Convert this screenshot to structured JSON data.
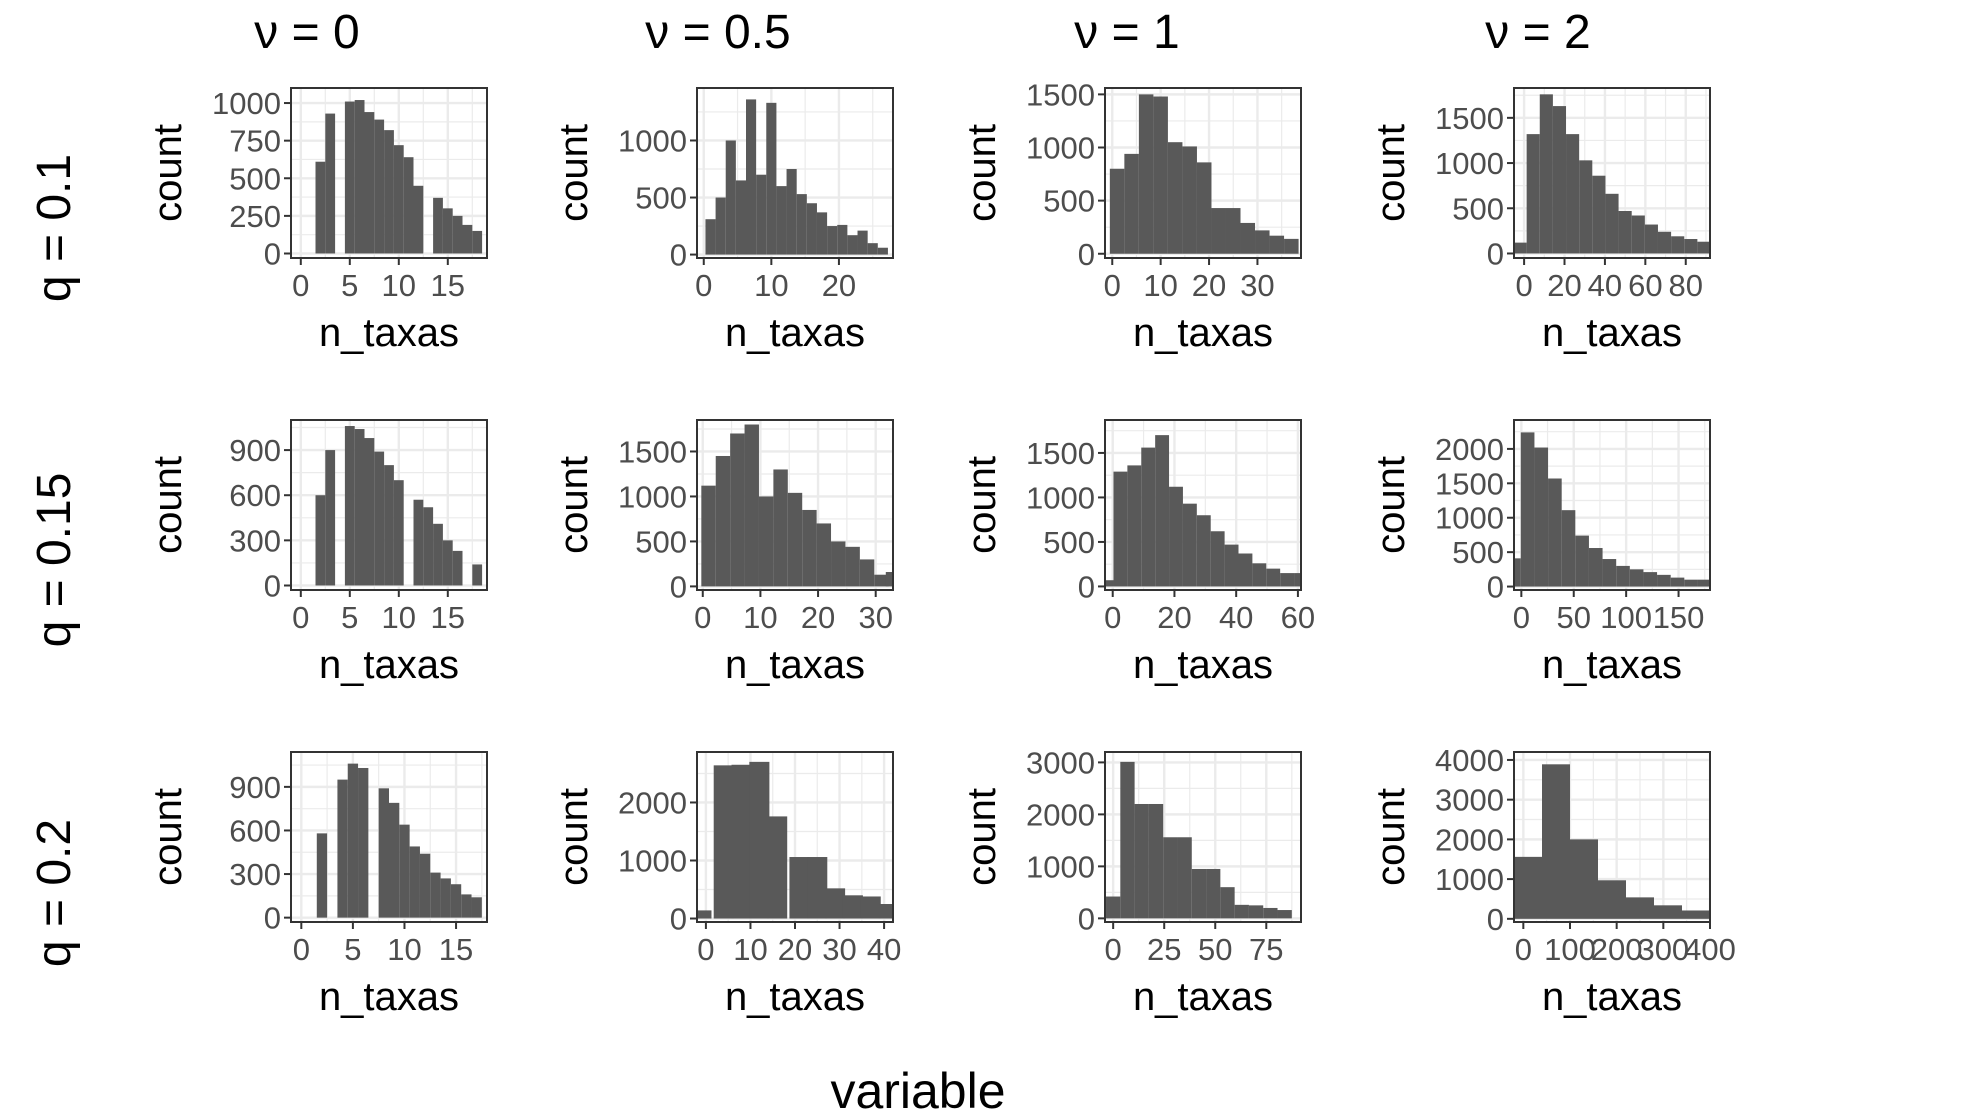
{
  "colors": {
    "bar": "#595959",
    "grid": "#ebebeb",
    "frame": "#333333",
    "tick_text": "#4d4d4d",
    "background": "#ffffff"
  },
  "x_axis_title": "variable",
  "col_headers": [
    "ν = 0",
    "ν = 0.5",
    "ν = 1",
    "ν = 2"
  ],
  "row_headers": [
    "q =  0.1",
    "q =  0.15",
    "q =  0.2"
  ],
  "chart_data": [
    {
      "type": "bar",
      "row": 0,
      "col": 0,
      "xlabel": "n_taxas",
      "ylabel": "count",
      "xlim": [
        -1,
        19
      ],
      "ylim": [
        -30,
        1100
      ],
      "xticks": [
        0,
        5,
        10,
        15
      ],
      "yticks": [
        0,
        250,
        500,
        750,
        1000
      ],
      "bin_width": 1,
      "x": [
        2,
        3,
        4,
        5,
        6,
        7,
        8,
        9,
        10,
        11,
        12,
        13,
        14,
        15,
        16,
        17,
        18
      ],
      "values": [
        610,
        930,
        0,
        1010,
        1020,
        940,
        890,
        820,
        720,
        640,
        450,
        0,
        370,
        300,
        250,
        190,
        150
      ]
    },
    {
      "type": "bar",
      "row": 0,
      "col": 1,
      "xlabel": "n_taxas",
      "ylabel": "count",
      "xlim": [
        -1,
        28
      ],
      "ylim": [
        -30,
        1460
      ],
      "xticks": [
        0,
        10,
        20
      ],
      "yticks": [
        0,
        500,
        1000
      ],
      "bin_width": 1.5,
      "x": [
        1,
        2.5,
        4,
        5.5,
        7,
        8.5,
        10,
        11.5,
        13,
        14.5,
        16,
        17.5,
        19,
        20.5,
        22,
        23.5,
        25,
        26.5
      ],
      "values": [
        310,
        500,
        1000,
        650,
        1360,
        700,
        1330,
        600,
        750,
        530,
        450,
        370,
        250,
        260,
        170,
        210,
        100,
        60
      ]
    },
    {
      "type": "bar",
      "row": 0,
      "col": 2,
      "xlabel": "n_taxas",
      "ylabel": "count",
      "xlim": [
        -1.5,
        39
      ],
      "ylim": [
        -40,
        1560
      ],
      "xticks": [
        0,
        10,
        20,
        30
      ],
      "yticks": [
        0,
        500,
        1000,
        1500
      ],
      "bin_width": 3,
      "x": [
        1,
        4,
        7,
        10,
        13,
        16,
        19,
        22,
        25,
        28,
        31,
        34,
        37
      ],
      "values": [
        800,
        940,
        1500,
        1480,
        1050,
        1010,
        860,
        430,
        430,
        290,
        220,
        170,
        140
      ]
    },
    {
      "type": "bar",
      "row": 0,
      "col": 3,
      "xlabel": "n_taxas",
      "ylabel": "count",
      "xlim": [
        -5,
        92
      ],
      "ylim": [
        -50,
        1830
      ],
      "xticks": [
        0,
        20,
        40,
        60,
        80
      ],
      "yticks": [
        0,
        500,
        1000,
        1500
      ],
      "bin_width": 6.5,
      "x": [
        -2,
        4.5,
        11,
        17.5,
        24,
        30.5,
        37,
        43.5,
        50,
        56.5,
        63,
        69.5,
        76,
        82.5,
        89
      ],
      "values": [
        120,
        1320,
        1760,
        1630,
        1320,
        1030,
        860,
        660,
        470,
        420,
        320,
        240,
        190,
        160,
        130
      ]
    },
    {
      "type": "bar",
      "row": 1,
      "col": 0,
      "xlabel": "n_taxas",
      "ylabel": "count",
      "xlim": [
        -1,
        19
      ],
      "ylim": [
        -30,
        1100
      ],
      "xticks": [
        0,
        5,
        10,
        15
      ],
      "yticks": [
        0,
        300,
        600,
        900
      ],
      "bin_width": 1,
      "x": [
        2,
        3,
        4,
        5,
        6,
        7,
        8,
        9,
        10,
        11,
        12,
        13,
        14,
        15,
        16,
        17,
        18
      ],
      "values": [
        600,
        900,
        0,
        1060,
        1040,
        980,
        890,
        800,
        700,
        0,
        570,
        520,
        410,
        300,
        230,
        0,
        140
      ]
    },
    {
      "type": "bar",
      "row": 1,
      "col": 1,
      "xlabel": "n_taxas",
      "ylabel": "count",
      "xlim": [
        -1,
        33
      ],
      "ylim": [
        -40,
        1850
      ],
      "xticks": [
        0,
        10,
        20,
        30
      ],
      "yticks": [
        0,
        500,
        1000,
        1500
      ],
      "bin_width": 2.5,
      "x": [
        1,
        3.5,
        6,
        8.5,
        11,
        13.5,
        16,
        18.5,
        21,
        23.5,
        26,
        28.5,
        31,
        33
      ],
      "values": [
        1120,
        1450,
        1700,
        1800,
        1000,
        1300,
        1040,
        850,
        700,
        500,
        440,
        300,
        130,
        160
      ]
    },
    {
      "type": "bar",
      "row": 1,
      "col": 2,
      "xlabel": "n_taxas",
      "ylabel": "count",
      "xlim": [
        -2.5,
        61
      ],
      "ylim": [
        -40,
        1870
      ],
      "xticks": [
        0,
        20,
        40,
        60
      ],
      "yticks": [
        0,
        500,
        1000,
        1500
      ],
      "bin_width": 4.5,
      "x": [
        -2,
        2.5,
        7,
        11.5,
        16,
        20.5,
        25,
        29.5,
        34,
        38.5,
        43,
        47.5,
        52,
        56.5,
        61
      ],
      "values": [
        70,
        1290,
        1360,
        1560,
        1700,
        1120,
        930,
        800,
        620,
        470,
        370,
        260,
        200,
        150,
        150
      ]
    },
    {
      "type": "bar",
      "row": 1,
      "col": 3,
      "xlabel": "n_taxas",
      "ylabel": "count",
      "xlim": [
        -7,
        180
      ],
      "ylim": [
        -50,
        2420
      ],
      "xticks": [
        0,
        50,
        100,
        150
      ],
      "yticks": [
        0,
        500,
        1000,
        1500,
        2000
      ],
      "bin_width": 13,
      "x": [
        -7,
        6,
        19,
        32,
        45,
        58,
        71,
        84,
        97,
        110,
        123,
        136,
        149,
        162,
        175
      ],
      "values": [
        410,
        2240,
        2020,
        1570,
        1110,
        740,
        560,
        400,
        300,
        250,
        210,
        170,
        130,
        100,
        100
      ]
    },
    {
      "type": "bar",
      "row": 2,
      "col": 0,
      "xlabel": "n_taxas",
      "ylabel": "count",
      "xlim": [
        -1,
        18
      ],
      "ylim": [
        -30,
        1140
      ],
      "xticks": [
        0,
        5,
        10,
        15
      ],
      "yticks": [
        0,
        300,
        600,
        900
      ],
      "bin_width": 1,
      "x": [
        2,
        3,
        4,
        5,
        6,
        7,
        8,
        9,
        10,
        11,
        12,
        13,
        14,
        15,
        16,
        17
      ],
      "values": [
        580,
        0,
        950,
        1060,
        1030,
        0,
        890,
        790,
        640,
        490,
        440,
        310,
        270,
        230,
        160,
        140
      ]
    },
    {
      "type": "bar",
      "row": 2,
      "col": 1,
      "xlabel": "n_taxas",
      "ylabel": "count",
      "xlim": [
        -2,
        42
      ],
      "ylim": [
        -60,
        2870
      ],
      "xticks": [
        0,
        10,
        20,
        30,
        40
      ],
      "yticks": [
        0,
        1000,
        2000
      ],
      "bin_width": 4.5,
      "x": [
        -1,
        4,
        8,
        12,
        16,
        21,
        25,
        29,
        33,
        37,
        41
      ],
      "values": [
        140,
        2640,
        2650,
        2700,
        1760,
        1060,
        1060,
        520,
        400,
        380,
        250
      ]
    },
    {
      "type": "bar",
      "row": 2,
      "col": 2,
      "xlabel": "n_taxas",
      "ylabel": "count",
      "xlim": [
        -4,
        92
      ],
      "ylim": [
        -70,
        3200
      ],
      "xticks": [
        0,
        25,
        50,
        75
      ],
      "yticks": [
        0,
        1000,
        2000,
        3000
      ],
      "bin_width": 7,
      "x": [
        0,
        7,
        14,
        21,
        28,
        35,
        42,
        49,
        56,
        63,
        70,
        77,
        84
      ],
      "values": [
        420,
        3010,
        2200,
        2200,
        1560,
        1560,
        950,
        950,
        600,
        260,
        250,
        200,
        160
      ]
    },
    {
      "type": "bar",
      "row": 2,
      "col": 3,
      "xlabel": "n_taxas",
      "ylabel": "count",
      "xlim": [
        -20,
        400
      ],
      "ylim": [
        -80,
        4200
      ],
      "xticks": [
        0,
        100,
        200,
        300,
        400
      ],
      "yticks": [
        0,
        1000,
        2000,
        3000,
        4000
      ],
      "bin_width": 30,
      "x": [
        -5,
        25,
        55,
        85,
        115,
        145,
        175,
        205,
        235,
        265,
        295,
        325,
        355,
        385
      ],
      "values": [
        1560,
        1560,
        3890,
        3890,
        2000,
        2000,
        970,
        970,
        540,
        540,
        340,
        340,
        210,
        210
      ]
    }
  ]
}
